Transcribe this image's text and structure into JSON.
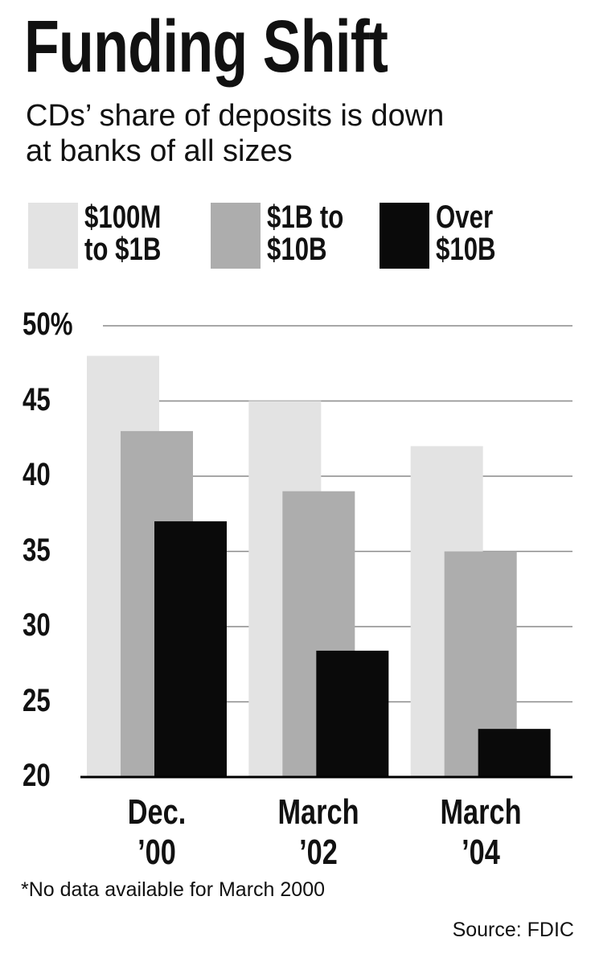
{
  "chart_data": {
    "type": "bar",
    "title": "Funding Shift",
    "subtitle": "CDs’ share of deposits is down\nat banks of all sizes",
    "categories": [
      "Dec.\n’00",
      "March\n’02",
      "March\n’04"
    ],
    "series": [
      {
        "name": "$100M\nto $1B",
        "color": "#e3e3e3",
        "values": [
          48,
          45,
          42
        ]
      },
      {
        "name": "$1B to\n$10B",
        "color": "#adadad",
        "values": [
          43,
          39,
          35
        ]
      },
      {
        "name": "Over\n$10B",
        "color": "#0a0a0a",
        "values": [
          37,
          28.4,
          23.2
        ]
      }
    ],
    "ylim": [
      20,
      50
    ],
    "yticks": [
      20,
      25,
      30,
      35,
      40,
      45,
      {
        "value": 50,
        "label": "50%"
      }
    ],
    "grid": true,
    "footnote": "*No data available for March 2000",
    "source": "Source: FDIC"
  }
}
